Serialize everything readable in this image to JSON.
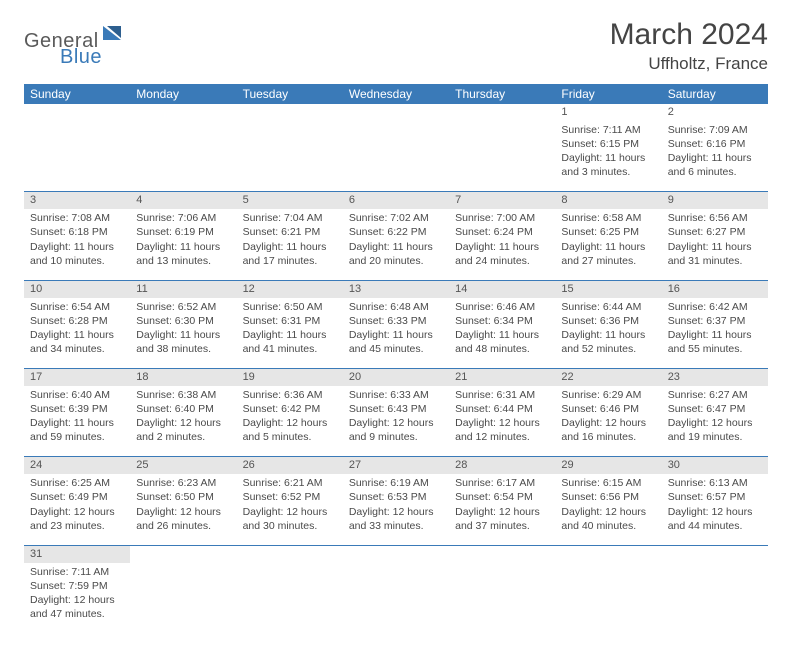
{
  "logo": {
    "part_a": "General",
    "part_b": "Blue"
  },
  "title": "March 2024",
  "location": "Uffholtz, France",
  "colors": {
    "header_bg": "#3a7ab8",
    "text": "#4a4a4a",
    "daynum_bg": "#e6e6e6",
    "border": "#3a7ab8"
  },
  "weekdays": [
    "Sunday",
    "Monday",
    "Tuesday",
    "Wednesday",
    "Thursday",
    "Friday",
    "Saturday"
  ],
  "weeks": [
    {
      "first": true,
      "days": [
        {
          "num": "",
          "lines": []
        },
        {
          "num": "",
          "lines": []
        },
        {
          "num": "",
          "lines": []
        },
        {
          "num": "",
          "lines": []
        },
        {
          "num": "",
          "lines": []
        },
        {
          "num": "1",
          "lines": [
            "Sunrise: 7:11 AM",
            "Sunset: 6:15 PM",
            "Daylight: 11 hours",
            "and 3 minutes."
          ]
        },
        {
          "num": "2",
          "lines": [
            "Sunrise: 7:09 AM",
            "Sunset: 6:16 PM",
            "Daylight: 11 hours",
            "and 6 minutes."
          ]
        }
      ]
    },
    {
      "days": [
        {
          "num": "3",
          "lines": [
            "Sunrise: 7:08 AM",
            "Sunset: 6:18 PM",
            "Daylight: 11 hours",
            "and 10 minutes."
          ]
        },
        {
          "num": "4",
          "lines": [
            "Sunrise: 7:06 AM",
            "Sunset: 6:19 PM",
            "Daylight: 11 hours",
            "and 13 minutes."
          ]
        },
        {
          "num": "5",
          "lines": [
            "Sunrise: 7:04 AM",
            "Sunset: 6:21 PM",
            "Daylight: 11 hours",
            "and 17 minutes."
          ]
        },
        {
          "num": "6",
          "lines": [
            "Sunrise: 7:02 AM",
            "Sunset: 6:22 PM",
            "Daylight: 11 hours",
            "and 20 minutes."
          ]
        },
        {
          "num": "7",
          "lines": [
            "Sunrise: 7:00 AM",
            "Sunset: 6:24 PM",
            "Daylight: 11 hours",
            "and 24 minutes."
          ]
        },
        {
          "num": "8",
          "lines": [
            "Sunrise: 6:58 AM",
            "Sunset: 6:25 PM",
            "Daylight: 11 hours",
            "and 27 minutes."
          ]
        },
        {
          "num": "9",
          "lines": [
            "Sunrise: 6:56 AM",
            "Sunset: 6:27 PM",
            "Daylight: 11 hours",
            "and 31 minutes."
          ]
        }
      ]
    },
    {
      "days": [
        {
          "num": "10",
          "lines": [
            "Sunrise: 6:54 AM",
            "Sunset: 6:28 PM",
            "Daylight: 11 hours",
            "and 34 minutes."
          ]
        },
        {
          "num": "11",
          "lines": [
            "Sunrise: 6:52 AM",
            "Sunset: 6:30 PM",
            "Daylight: 11 hours",
            "and 38 minutes."
          ]
        },
        {
          "num": "12",
          "lines": [
            "Sunrise: 6:50 AM",
            "Sunset: 6:31 PM",
            "Daylight: 11 hours",
            "and 41 minutes."
          ]
        },
        {
          "num": "13",
          "lines": [
            "Sunrise: 6:48 AM",
            "Sunset: 6:33 PM",
            "Daylight: 11 hours",
            "and 45 minutes."
          ]
        },
        {
          "num": "14",
          "lines": [
            "Sunrise: 6:46 AM",
            "Sunset: 6:34 PM",
            "Daylight: 11 hours",
            "and 48 minutes."
          ]
        },
        {
          "num": "15",
          "lines": [
            "Sunrise: 6:44 AM",
            "Sunset: 6:36 PM",
            "Daylight: 11 hours",
            "and 52 minutes."
          ]
        },
        {
          "num": "16",
          "lines": [
            "Sunrise: 6:42 AM",
            "Sunset: 6:37 PM",
            "Daylight: 11 hours",
            "and 55 minutes."
          ]
        }
      ]
    },
    {
      "days": [
        {
          "num": "17",
          "lines": [
            "Sunrise: 6:40 AM",
            "Sunset: 6:39 PM",
            "Daylight: 11 hours",
            "and 59 minutes."
          ]
        },
        {
          "num": "18",
          "lines": [
            "Sunrise: 6:38 AM",
            "Sunset: 6:40 PM",
            "Daylight: 12 hours",
            "and 2 minutes."
          ]
        },
        {
          "num": "19",
          "lines": [
            "Sunrise: 6:36 AM",
            "Sunset: 6:42 PM",
            "Daylight: 12 hours",
            "and 5 minutes."
          ]
        },
        {
          "num": "20",
          "lines": [
            "Sunrise: 6:33 AM",
            "Sunset: 6:43 PM",
            "Daylight: 12 hours",
            "and 9 minutes."
          ]
        },
        {
          "num": "21",
          "lines": [
            "Sunrise: 6:31 AM",
            "Sunset: 6:44 PM",
            "Daylight: 12 hours",
            "and 12 minutes."
          ]
        },
        {
          "num": "22",
          "lines": [
            "Sunrise: 6:29 AM",
            "Sunset: 6:46 PM",
            "Daylight: 12 hours",
            "and 16 minutes."
          ]
        },
        {
          "num": "23",
          "lines": [
            "Sunrise: 6:27 AM",
            "Sunset: 6:47 PM",
            "Daylight: 12 hours",
            "and 19 minutes."
          ]
        }
      ]
    },
    {
      "days": [
        {
          "num": "24",
          "lines": [
            "Sunrise: 6:25 AM",
            "Sunset: 6:49 PM",
            "Daylight: 12 hours",
            "and 23 minutes."
          ]
        },
        {
          "num": "25",
          "lines": [
            "Sunrise: 6:23 AM",
            "Sunset: 6:50 PM",
            "Daylight: 12 hours",
            "and 26 minutes."
          ]
        },
        {
          "num": "26",
          "lines": [
            "Sunrise: 6:21 AM",
            "Sunset: 6:52 PM",
            "Daylight: 12 hours",
            "and 30 minutes."
          ]
        },
        {
          "num": "27",
          "lines": [
            "Sunrise: 6:19 AM",
            "Sunset: 6:53 PM",
            "Daylight: 12 hours",
            "and 33 minutes."
          ]
        },
        {
          "num": "28",
          "lines": [
            "Sunrise: 6:17 AM",
            "Sunset: 6:54 PM",
            "Daylight: 12 hours",
            "and 37 minutes."
          ]
        },
        {
          "num": "29",
          "lines": [
            "Sunrise: 6:15 AM",
            "Sunset: 6:56 PM",
            "Daylight: 12 hours",
            "and 40 minutes."
          ]
        },
        {
          "num": "30",
          "lines": [
            "Sunrise: 6:13 AM",
            "Sunset: 6:57 PM",
            "Daylight: 12 hours",
            "and 44 minutes."
          ]
        }
      ]
    },
    {
      "last": true,
      "days": [
        {
          "num": "31",
          "lines": [
            "Sunrise: 7:11 AM",
            "Sunset: 7:59 PM",
            "Daylight: 12 hours",
            "and 47 minutes."
          ]
        },
        {
          "num": "",
          "lines": []
        },
        {
          "num": "",
          "lines": []
        },
        {
          "num": "",
          "lines": []
        },
        {
          "num": "",
          "lines": []
        },
        {
          "num": "",
          "lines": []
        },
        {
          "num": "",
          "lines": []
        }
      ]
    }
  ]
}
